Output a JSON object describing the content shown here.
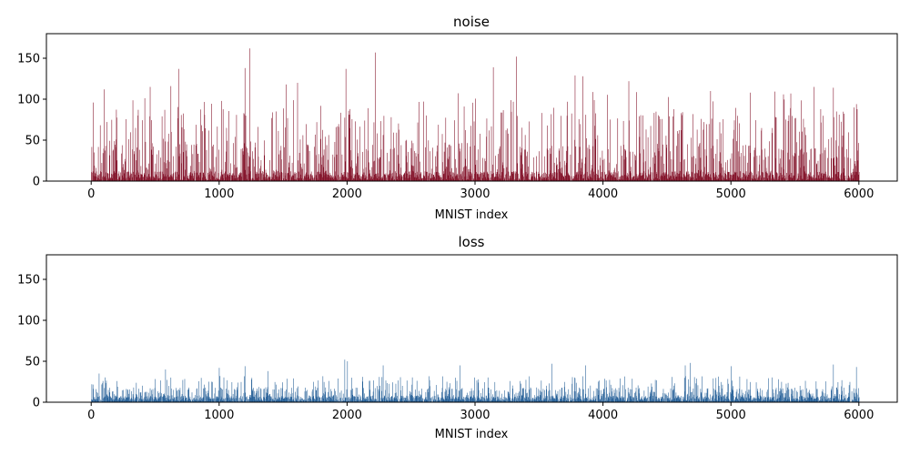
{
  "chart_data": [
    {
      "type": "bar",
      "title": "noise",
      "xlabel": "MNIST index",
      "ylabel": "",
      "xlim": [
        -350,
        6300
      ],
      "ylim": [
        0,
        180
      ],
      "xticks": [
        "0",
        "1000",
        "2000",
        "3000",
        "4000",
        "5000",
        "6000"
      ],
      "yticks": [
        "0",
        "50",
        "100",
        "150"
      ],
      "color": "#7f0a22",
      "grid": false,
      "sample_points": [
        [
          100,
          112
        ],
        [
          460,
          115
        ],
        [
          620,
          116
        ],
        [
          680,
          137
        ],
        [
          1200,
          138
        ],
        [
          1240,
          162
        ],
        [
          1520,
          118
        ],
        [
          1610,
          120
        ],
        [
          1990,
          137
        ],
        [
          2220,
          157
        ],
        [
          3140,
          139
        ],
        [
          3320,
          152
        ],
        [
          3780,
          129
        ],
        [
          3840,
          128
        ],
        [
          4200,
          122
        ],
        [
          5150,
          108
        ],
        [
          5650,
          115
        ],
        [
          5800,
          114
        ],
        [
          5980,
          94
        ]
      ]
    },
    {
      "type": "bar",
      "title": "loss",
      "xlabel": "MNIST index",
      "ylabel": "",
      "xlim": [
        -350,
        6300
      ],
      "ylim": [
        0,
        180
      ],
      "xticks": [
        "0",
        "1000",
        "2000",
        "3000",
        "4000",
        "5000",
        "6000"
      ],
      "yticks": [
        "0",
        "50",
        "100",
        "150"
      ],
      "color": "#1f5b95",
      "grid": false,
      "sample_points": [
        [
          60,
          35
        ],
        [
          580,
          40
        ],
        [
          1000,
          42
        ],
        [
          1200,
          44
        ],
        [
          1380,
          38
        ],
        [
          1980,
          52
        ],
        [
          2000,
          50
        ],
        [
          2280,
          45
        ],
        [
          2880,
          45
        ],
        [
          3600,
          47
        ],
        [
          3860,
          45
        ],
        [
          4640,
          45
        ],
        [
          4680,
          48
        ],
        [
          5000,
          44
        ],
        [
          5800,
          46
        ],
        [
          5980,
          43
        ]
      ]
    }
  ]
}
